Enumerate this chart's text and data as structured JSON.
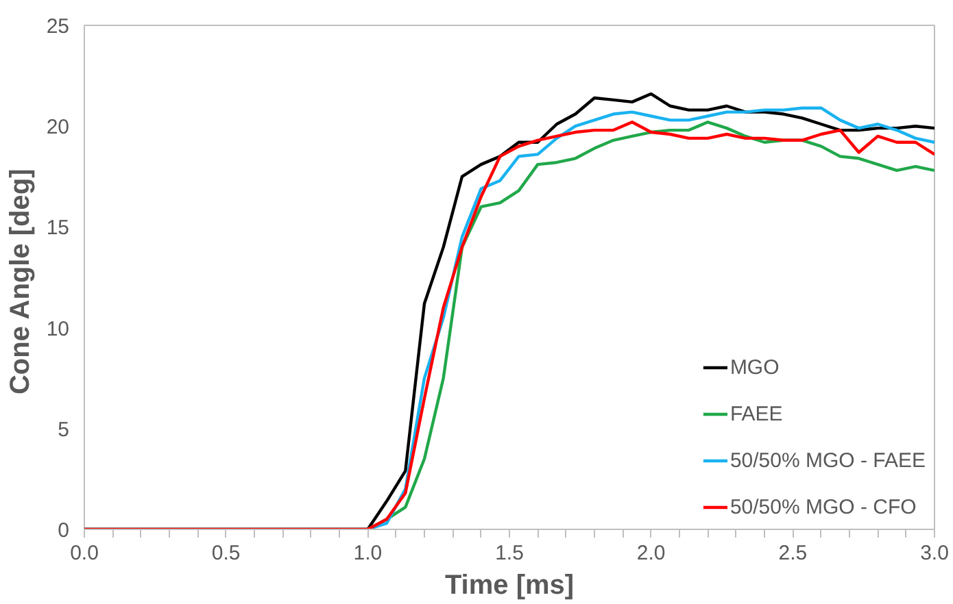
{
  "chart_data": {
    "type": "line",
    "xlabel": "Time [ms]",
    "ylabel": "Cone  Angle [deg]",
    "x": [
      0,
      1.0,
      1.067,
      1.133,
      1.2,
      1.267,
      1.333,
      1.4,
      1.467,
      1.533,
      1.6,
      1.667,
      1.733,
      1.8,
      1.867,
      1.933,
      2.0,
      2.067,
      2.133,
      2.2,
      2.267,
      2.333,
      2.4,
      2.467,
      2.533,
      2.6,
      2.667,
      2.733,
      2.8,
      2.867,
      2.933,
      3.0
    ],
    "series": [
      {
        "name": "MGO",
        "color": "#000000",
        "values": [
          0,
          0,
          1.4,
          2.9,
          11.2,
          14.0,
          17.5,
          18.1,
          18.5,
          19.2,
          19.2,
          20.1,
          20.6,
          21.4,
          21.3,
          21.2,
          21.6,
          21.0,
          20.8,
          20.8,
          21.0,
          20.7,
          20.7,
          20.6,
          20.4,
          20.1,
          19.8,
          19.8,
          19.9,
          19.9,
          20.0,
          19.9
        ]
      },
      {
        "name": "FAEE",
        "color": "#21a84a",
        "values": [
          0,
          0,
          0.5,
          1.1,
          3.5,
          7.5,
          14.0,
          16.0,
          16.2,
          16.8,
          18.1,
          18.2,
          18.4,
          18.9,
          19.3,
          19.5,
          19.7,
          19.8,
          19.8,
          20.2,
          19.9,
          19.5,
          19.2,
          19.3,
          19.3,
          19.0,
          18.5,
          18.4,
          18.1,
          17.8,
          18.0,
          17.8
        ]
      },
      {
        "name": "50/50% MGO - FAEE",
        "color": "#1ab2f0",
        "values": [
          0,
          0,
          0.3,
          2.0,
          7.5,
          10.5,
          14.5,
          16.9,
          17.3,
          18.5,
          18.6,
          19.4,
          20.0,
          20.3,
          20.6,
          20.7,
          20.5,
          20.3,
          20.3,
          20.5,
          20.7,
          20.7,
          20.8,
          20.8,
          20.9,
          20.9,
          20.3,
          19.9,
          20.1,
          19.8,
          19.4,
          19.2
        ]
      },
      {
        "name": "50/50% MGO - CFO",
        "color": "#ff0000",
        "values": [
          0,
          0,
          0.5,
          1.8,
          6.5,
          11.0,
          14.0,
          16.5,
          18.5,
          19.0,
          19.3,
          19.5,
          19.7,
          19.8,
          19.8,
          20.2,
          19.7,
          19.6,
          19.4,
          19.4,
          19.6,
          19.4,
          19.4,
          19.3,
          19.3,
          19.6,
          19.8,
          18.7,
          19.5,
          19.2,
          19.2,
          18.6
        ]
      }
    ],
    "xlim": [
      0,
      3.0
    ],
    "ylim": [
      0,
      25
    ],
    "xticks": [
      {
        "value": 0,
        "label": "0.0"
      },
      {
        "value": 0.5,
        "label": "0.5"
      },
      {
        "value": 1,
        "label": "1.0"
      },
      {
        "value": 1.5,
        "label": "1.5"
      },
      {
        "value": 2,
        "label": "2.0"
      },
      {
        "value": 2.5,
        "label": "2.5"
      },
      {
        "value": 3,
        "label": "3.0"
      }
    ],
    "yticks": [
      0,
      5,
      10,
      15,
      20,
      25
    ],
    "legend": "bottom right",
    "grid": false,
    "marker": "none",
    "line_style": "solid"
  }
}
